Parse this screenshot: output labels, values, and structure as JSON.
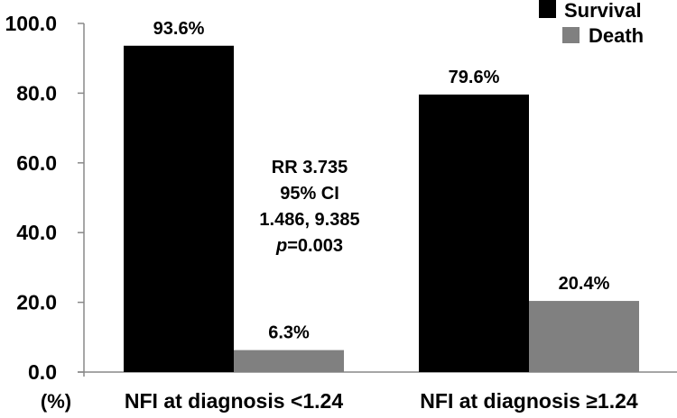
{
  "chart_data": {
    "type": "bar",
    "categories": [
      "NFI at diagnosis <1.24",
      "NFI at diagnosis ≥1.24"
    ],
    "series": [
      {
        "name": "Survival",
        "values": [
          93.6,
          79.6
        ],
        "labels": [
          "93.6%",
          "79.6%"
        ],
        "color": "#000000"
      },
      {
        "name": "Death",
        "values": [
          6.3,
          20.4
        ],
        "labels": [
          "6.3%",
          "20.4%"
        ],
        "color": "#808080"
      }
    ],
    "ylabel": "(%)",
    "ylim": [
      0,
      100
    ],
    "yticks": [
      "0.0",
      "20.0",
      "40.0",
      "60.0",
      "80.0",
      "100.0"
    ],
    "grid": false,
    "legend": "top-right",
    "annotation": [
      "RR 3.735",
      "95% CI",
      "1.486, 9.385"
    ],
    "annotation_p": {
      "italic": "p",
      "rest": "=0.003"
    }
  }
}
